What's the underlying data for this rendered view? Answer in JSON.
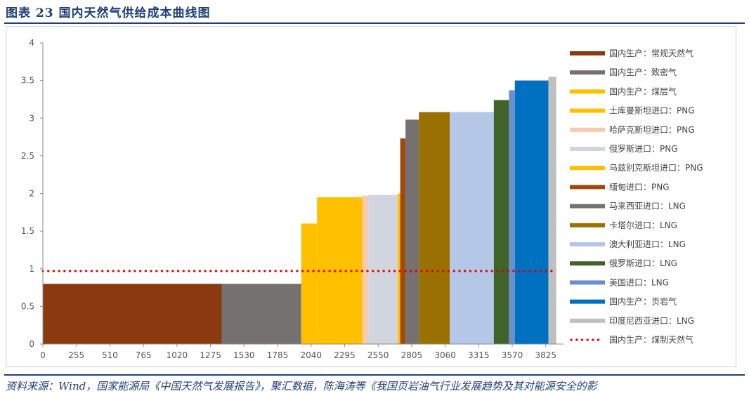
{
  "header": {
    "title": "图表 23   国内天然气供给成本曲线图"
  },
  "footer": {
    "source": "资料来源：Wind，国家能源局《中国天然气发展报告》，聚汇数据，陈海涛等《我国页岩油气行业发展趋势及其对能源安全的影"
  },
  "chart_data": {
    "type": "bar",
    "subtype": "variable-width step bars (supply cost curve)",
    "title": "",
    "xlabel": "",
    "ylabel": "",
    "xlim": [
      0,
      3960
    ],
    "ylim": [
      0,
      4
    ],
    "x_ticks": [
      0,
      255,
      510,
      765,
      1020,
      1275,
      1530,
      1785,
      2040,
      2295,
      2550,
      2805,
      3060,
      3315,
      3570,
      3825
    ],
    "x_tick_labels": [
      "0",
      "255",
      "510",
      "765",
      "1020",
      "1275",
      "1530",
      "1785",
      "2040",
      "2295",
      "2550",
      "2805",
      "3060",
      "3315",
      "3570",
      "3825"
    ],
    "y_ticks": [
      0,
      0.5,
      1,
      1.5,
      2,
      2.5,
      3,
      3.5,
      4
    ],
    "y_tick_labels": [
      "0",
      "0.5",
      "1",
      "1.5",
      "2",
      "2.5",
      "3",
      "3.5",
      "4"
    ],
    "grid": false,
    "legend_position": "right",
    "series": [
      {
        "name": "国内生产：常规天然气",
        "color": "#8b3a0f",
        "x_start": 0,
        "x_end": 1360,
        "value": 0.8
      },
      {
        "name": "国内生产：致密气",
        "color": "#767171",
        "x_start": 1360,
        "x_end": 1965,
        "value": 0.8
      },
      {
        "name": "国内生产：煤层气",
        "color": "#ffc000",
        "x_start": 1965,
        "x_end": 2085,
        "value": 1.6
      },
      {
        "name": "土库曼斯坦进口：PNG",
        "color": "#ffc000",
        "x_start": 2085,
        "x_end": 2430,
        "value": 1.95
      },
      {
        "name": "哈萨克斯坦进口：PNG",
        "color": "#f8cbad",
        "x_start": 2430,
        "x_end": 2475,
        "value": 1.97
      },
      {
        "name": "俄罗斯进口：PNG",
        "color": "#d0d5e0",
        "x_start": 2475,
        "x_end": 2700,
        "value": 1.98
      },
      {
        "name": "乌兹别克斯坦进口：PNG",
        "color": "#ffc000",
        "x_start": 2700,
        "x_end": 2718,
        "value": 2.0
      },
      {
        "name": "缅甸进口：PNG",
        "color": "#9e4a0e",
        "x_start": 2718,
        "x_end": 2758,
        "value": 2.73
      },
      {
        "name": "马来西亚进口：LNG",
        "color": "#767171",
        "x_start": 2758,
        "x_end": 2860,
        "value": 2.98
      },
      {
        "name": "卡塔尔进口：LNG",
        "color": "#9a7000",
        "x_start": 2860,
        "x_end": 3095,
        "value": 3.08
      },
      {
        "name": "澳大利亚进口：LNG",
        "color": "#b4c7e7",
        "x_start": 3095,
        "x_end": 3430,
        "value": 3.08
      },
      {
        "name": "俄罗斯进口：LNG",
        "color": "#40632a",
        "x_start": 3430,
        "x_end": 3545,
        "value": 3.24
      },
      {
        "name": "美国进口：LNG",
        "color": "#6a8fd0",
        "x_start": 3545,
        "x_end": 3590,
        "value": 3.37
      },
      {
        "name": "国内生产：页岩气",
        "color": "#0070c0",
        "x_start": 3590,
        "x_end": 3845,
        "value": 3.5
      },
      {
        "name": "印度尼西亚进口：LNG",
        "color": "#bfbfbf",
        "x_start": 3845,
        "x_end": 3905,
        "value": 3.55
      }
    ],
    "reference_line": {
      "name": "国内生产：煤制天然气",
      "color": "#e00000",
      "x_start": 0,
      "x_end": 3905,
      "value": 0.97,
      "style": "dotted"
    }
  }
}
